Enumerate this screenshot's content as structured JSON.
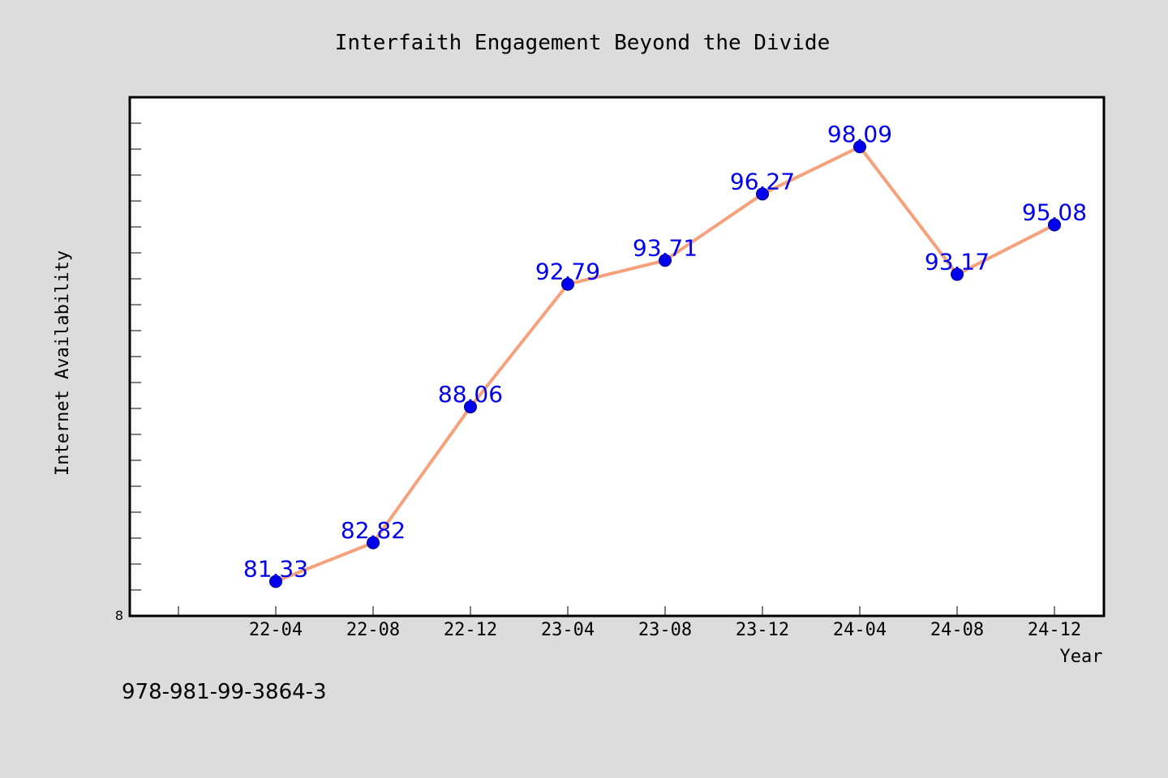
{
  "chart_data": {
    "type": "line",
    "title": "Interfaith Engagement Beyond the Divide",
    "xlabel": "Year",
    "ylabel": "Internet Availability",
    "categories": [
      "22-04",
      "22-08",
      "22-12",
      "23-04",
      "23-08",
      "23-12",
      "24-04",
      "24-08",
      "24-12"
    ],
    "series": [
      {
        "values": [
          81.33,
          82.82,
          88.06,
          92.79,
          93.71,
          96.27,
          98.09,
          93.17,
          95.08
        ],
        "value_labels": [
          "81.33",
          "82.82",
          "88.06",
          "92.79",
          "93.71",
          "96.27",
          "98.09",
          "93.17",
          "95.08"
        ]
      }
    ],
    "ylim": [
      80.0,
      100.0
    ],
    "yticks_minor_step": 1,
    "ytick_labels": [
      "8"
    ],
    "grid": false,
    "legend": "none",
    "colors": {
      "page_background": "#dcdcdc",
      "plot_background": "#ffffff",
      "line": "#f7a07c",
      "marker": "#0000ee",
      "value_label": "#0000ee",
      "text": "#000000"
    }
  },
  "footer": {
    "isbn": "978-981-99-3864-3"
  }
}
